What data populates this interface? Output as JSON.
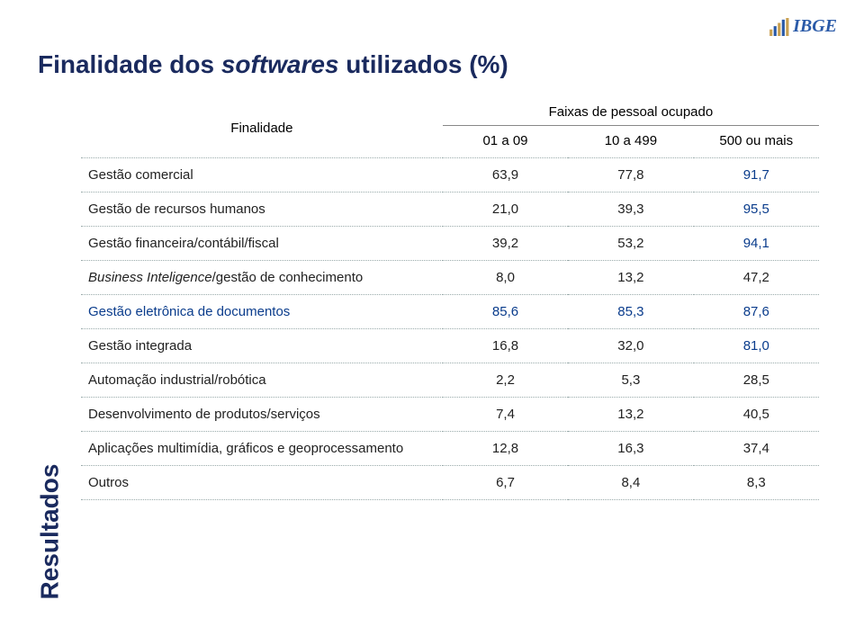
{
  "logo_text": "IBGE",
  "title_prefix": "Finalidade dos ",
  "title_italic": "softwares",
  "title_suffix": " utilizados (%)",
  "sidebar_label": "Resultados",
  "table": {
    "row_header": "Finalidade",
    "group_header": "Faixas de pessoal ocupado",
    "columns": [
      "01 a 09",
      "10 a 499",
      "500 ou mais"
    ],
    "rows": [
      {
        "label": "Gestão comercial",
        "values": [
          "63,9",
          "77,8",
          "91,7"
        ],
        "last_color": "#0a3c8c",
        "italic": false
      },
      {
        "label": "Gestão de recursos humanos",
        "values": [
          "21,0",
          "39,3",
          "95,5"
        ],
        "last_color": "#0a3c8c",
        "italic": false
      },
      {
        "label": "Gestão financeira/contábil/fiscal",
        "values": [
          "39,2",
          "53,2",
          "94,1"
        ],
        "last_color": "#0a3c8c",
        "italic": false
      },
      {
        "label": "Business Inteligence/gestão de conhecimento",
        "values": [
          "8,0",
          "13,2",
          "47,2"
        ],
        "last_color": "#222222",
        "italic": true
      },
      {
        "label": "Gestão eletrônica de documentos",
        "values": [
          "85,6",
          "85,3",
          "87,6"
        ],
        "last_color": "#0a3c8c",
        "row_color": "#0a3c8c",
        "italic": false
      },
      {
        "label": "Gestão integrada",
        "values": [
          "16,8",
          "32,0",
          "81,0"
        ],
        "last_color": "#0a3c8c",
        "italic": false
      },
      {
        "label": "Automação industrial/robótica",
        "values": [
          "2,2",
          "5,3",
          "28,5"
        ],
        "last_color": "#222222",
        "italic": false
      },
      {
        "label": "Desenvolvimento de produtos/serviços",
        "values": [
          "7,4",
          "13,2",
          "40,5"
        ],
        "last_color": "#222222",
        "italic": false
      },
      {
        "label": "Aplicações multimídia, gráficos e geoprocessamento",
        "values": [
          "12,8",
          "16,3",
          "37,4"
        ],
        "last_color": "#222222",
        "italic": false
      },
      {
        "label": "Outros",
        "values": [
          "6,7",
          "8,4",
          "8,3"
        ],
        "last_color": "#222222",
        "italic": false
      }
    ],
    "header_color": "#222222",
    "label_color": "#222222",
    "value_color": "#222222",
    "dotted_color": "#9aa0b0"
  }
}
